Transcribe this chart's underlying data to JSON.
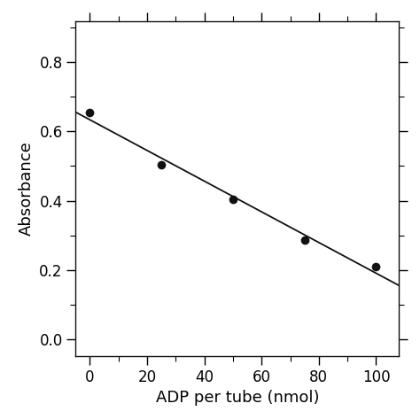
{
  "scatter_x": [
    0,
    25,
    50,
    75,
    100
  ],
  "scatter_y": [
    0.655,
    0.505,
    0.405,
    0.285,
    0.21
  ],
  "xlabel": "ADP per tube (nmol)",
  "ylabel": "Absorbance",
  "xlim": [
    -5,
    108
  ],
  "ylim": [
    -0.05,
    0.92
  ],
  "xticks": [
    0,
    20,
    40,
    60,
    80,
    100
  ],
  "yticks": [
    0.0,
    0.2,
    0.4,
    0.6,
    0.8
  ],
  "marker_color": "#111111",
  "line_color": "#111111",
  "background_color": "#ffffff",
  "marker_size": 7,
  "line_width": 1.3,
  "font_size_label": 13,
  "font_size_tick": 12
}
